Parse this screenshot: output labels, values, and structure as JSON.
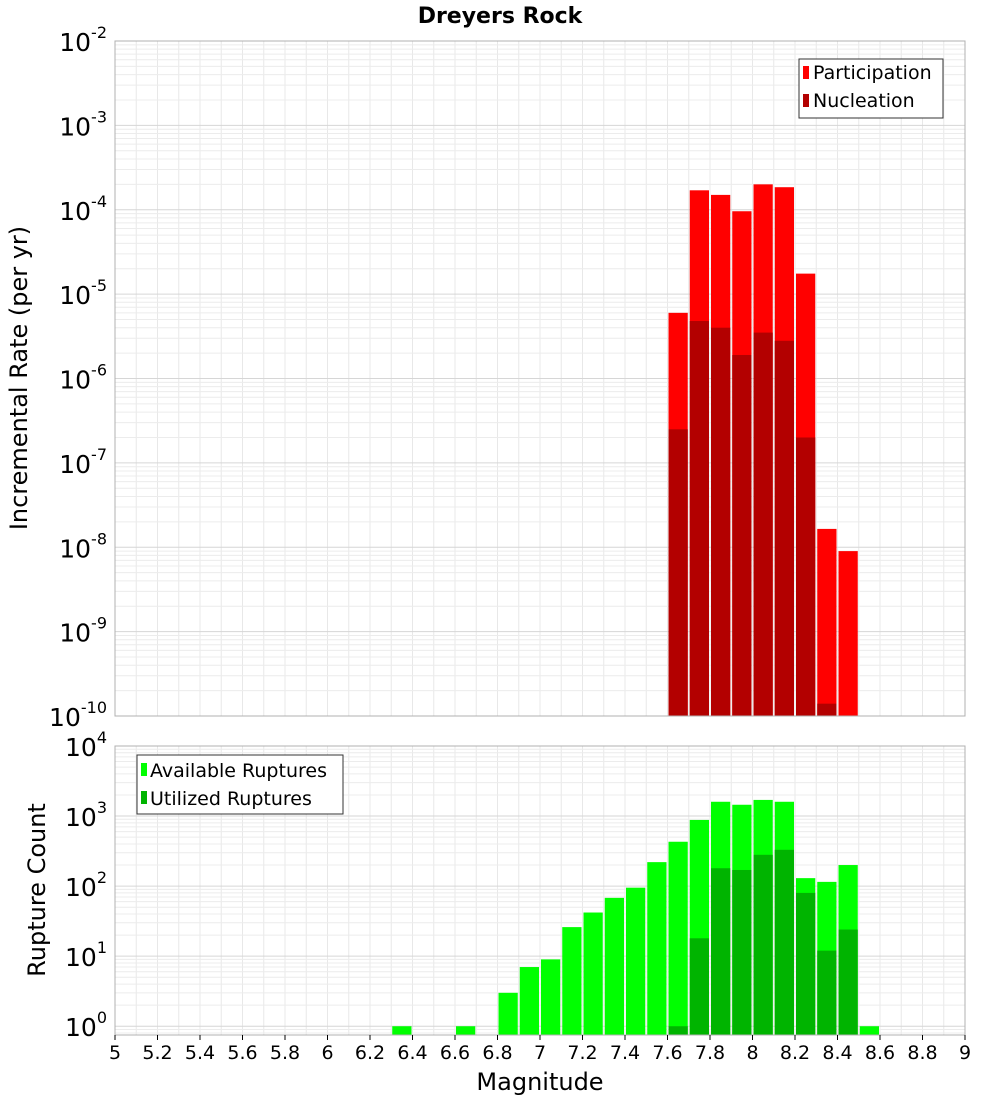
{
  "chart_data": [
    {
      "type": "bar",
      "title": "Dreyers Rock",
      "xlabel": "",
      "ylabel": "Incremental Rate (per yr)",
      "yscale": "log",
      "xlim": [
        5,
        9
      ],
      "ylim": [
        1e-10,
        0.01
      ],
      "bar_width": 0.1,
      "grid": true,
      "legend_position": "top-right",
      "y_ticks": [
        {
          "base": "10",
          "exp": "-10",
          "value": 1e-10
        },
        {
          "base": "10",
          "exp": "-9",
          "value": 1e-09
        },
        {
          "base": "10",
          "exp": "-8",
          "value": 1e-08
        },
        {
          "base": "10",
          "exp": "-7",
          "value": 1e-07
        },
        {
          "base": "10",
          "exp": "-6",
          "value": 1e-06
        },
        {
          "base": "10",
          "exp": "-5",
          "value": 1e-05
        },
        {
          "base": "10",
          "exp": "-4",
          "value": 0.0001
        },
        {
          "base": "10",
          "exp": "-3",
          "value": 0.001
        },
        {
          "base": "10",
          "exp": "-2",
          "value": 0.01
        }
      ],
      "series": [
        {
          "name": "Participation",
          "color": "#ff0000",
          "x": [
            7.65,
            7.75,
            7.85,
            7.95,
            8.05,
            8.15,
            8.25,
            8.35,
            8.45
          ],
          "values": [
            6e-06,
            0.00017,
            0.00015,
            9.6e-05,
            0.0002,
            0.000185,
            1.75e-05,
            1.65e-08,
            9e-09
          ]
        },
        {
          "name": "Nucleation",
          "color": "#b30000",
          "x": [
            7.65,
            7.75,
            7.85,
            7.95,
            8.05,
            8.15,
            8.25,
            8.35
          ],
          "values": [
            2.5e-07,
            4.8e-06,
            4e-06,
            1.9e-06,
            3.5e-06,
            2.8e-06,
            2e-07,
            1.4e-10
          ]
        }
      ]
    },
    {
      "type": "bar",
      "title": "",
      "xlabel": "Magnitude",
      "ylabel": "Rupture Count",
      "yscale": "log",
      "xlim": [
        5,
        9
      ],
      "ylim": [
        0.75,
        10000
      ],
      "bar_width": 0.1,
      "grid": true,
      "legend_position": "top-left",
      "x_ticks": [
        "5",
        "5.2",
        "5.4",
        "5.6",
        "5.8",
        "6",
        "6.2",
        "6.4",
        "6.6",
        "6.8",
        "7",
        "7.2",
        "7.4",
        "7.6",
        "7.8",
        "8",
        "8.2",
        "8.4",
        "8.6",
        "8.8",
        "9"
      ],
      "y_ticks": [
        {
          "base": "10",
          "exp": "0",
          "value": 1
        },
        {
          "base": "10",
          "exp": "1",
          "value": 10
        },
        {
          "base": "10",
          "exp": "2",
          "value": 100
        },
        {
          "base": "10",
          "exp": "3",
          "value": 1000
        },
        {
          "base": "10",
          "exp": "4",
          "value": 10000
        }
      ],
      "series": [
        {
          "name": "Available Ruptures",
          "color": "#00ff00",
          "x": [
            6.35,
            6.65,
            6.85,
            6.95,
            7.05,
            7.15,
            7.25,
            7.35,
            7.45,
            7.55,
            7.65,
            7.75,
            7.85,
            7.95,
            8.05,
            8.15,
            8.25,
            8.35,
            8.45,
            8.55
          ],
          "values": [
            1,
            1,
            3,
            7,
            9,
            26,
            42,
            68,
            95,
            220,
            430,
            880,
            1600,
            1450,
            1700,
            1600,
            130,
            115,
            200,
            1
          ]
        },
        {
          "name": "Utilized Ruptures",
          "color": "#00b400",
          "x": [
            7.65,
            7.75,
            7.85,
            7.95,
            8.05,
            8.15,
            8.25,
            8.35,
            8.45
          ],
          "values": [
            1,
            18,
            180,
            170,
            280,
            330,
            80,
            12,
            24
          ]
        }
      ]
    }
  ]
}
